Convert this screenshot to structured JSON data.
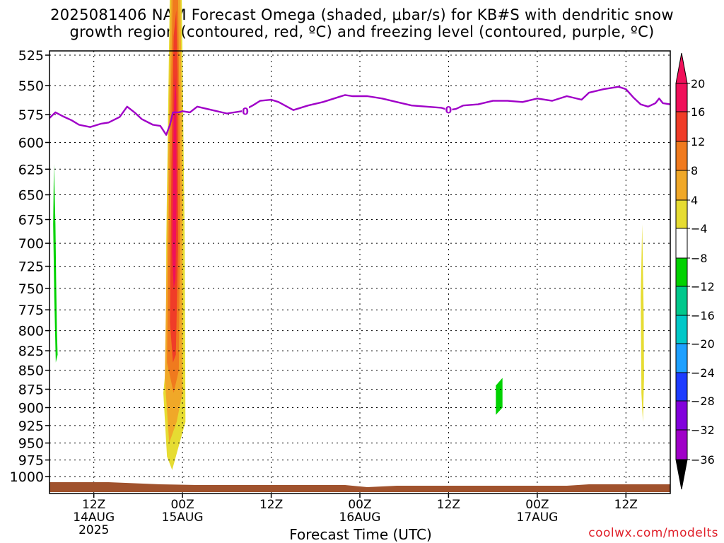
{
  "title": {
    "line1": "2025081406 NAM Forecast Omega (shaded, μbar/s) for KB#S with dendritic snow",
    "line2": "growth region (contoured, red, ºC) and freezing level (contoured, purple, ºC)"
  },
  "credit": "coolwx.com/modelts",
  "chart_data": {
    "type": "heatmap",
    "xlabel": "Forecast Time (UTC)",
    "x_axis": {
      "unit": "hours from 2025-08-14 06Z",
      "range": [
        0,
        84
      ],
      "ticks": [
        {
          "hour": 6,
          "lines": [
            "12Z",
            "14AUG",
            "2025"
          ]
        },
        {
          "hour": 18,
          "lines": [
            "00Z",
            "15AUG"
          ]
        },
        {
          "hour": 30,
          "lines": [
            "12Z"
          ]
        },
        {
          "hour": 42,
          "lines": [
            "00Z",
            "16AUG"
          ]
        },
        {
          "hour": 54,
          "lines": [
            "12Z"
          ]
        },
        {
          "hour": 66,
          "lines": [
            "00Z",
            "17AUG"
          ]
        },
        {
          "hour": 78,
          "lines": [
            "12Z"
          ]
        }
      ]
    },
    "y_axis": {
      "unit": "hPa",
      "range": [
        1000,
        525
      ],
      "scale": "log",
      "inverted": true,
      "ticks": [
        525,
        550,
        575,
        600,
        625,
        650,
        675,
        700,
        725,
        750,
        775,
        800,
        825,
        850,
        875,
        900,
        925,
        950,
        975,
        1000
      ]
    },
    "grid": true,
    "colorbar": {
      "levels": [
        20,
        16,
        12,
        8,
        4,
        -4,
        -8,
        -12,
        -16,
        -20,
        -24,
        -28,
        -32,
        -36
      ],
      "colors": [
        "#f0105a",
        "#f03c28",
        "#f07a1e",
        "#f0a828",
        "#e6dc32",
        "#ffffff",
        "#00d200",
        "#00c88c",
        "#00c8c8",
        "#1ea0ff",
        "#1e3cff",
        "#8200dc",
        "#a000c8",
        "#aaaaaa"
      ],
      "top_arrow_color": "#f0105a",
      "bottom_arrow_color": "#000000"
    },
    "freezing_level": {
      "color": "#a000c8",
      "label": "0",
      "label_hours": [
        26.5,
        54
      ],
      "hours": [
        0,
        0.8,
        2,
        3,
        4,
        5.5,
        6,
        7,
        8,
        9.5,
        10.5,
        11.5,
        12.5,
        14,
        15,
        15.8,
        16.3,
        16.7,
        17.5,
        18,
        19,
        20,
        22,
        24,
        26,
        27.5,
        28.5,
        30,
        31,
        33,
        35,
        37,
        39,
        40,
        41,
        43,
        45,
        47,
        49,
        51,
        53,
        54,
        55,
        56,
        58,
        60,
        62,
        64,
        66,
        68,
        70,
        72,
        73,
        75,
        76,
        77,
        78,
        79,
        80,
        81,
        82,
        82.5,
        83,
        84
      ],
      "pressure": [
        578,
        573,
        577,
        580,
        584,
        586,
        585,
        583,
        582,
        577,
        568,
        573,
        579,
        584,
        585,
        593,
        584,
        573,
        573,
        572,
        573,
        568,
        571,
        574,
        572,
        567,
        563,
        562,
        564,
        571,
        567,
        564,
        560,
        558,
        559,
        559,
        561,
        564,
        567,
        568,
        569,
        571,
        570,
        567,
        566,
        563,
        563,
        564,
        561,
        563,
        559,
        562,
        556,
        553,
        552,
        551,
        553,
        560,
        566,
        568,
        565,
        561,
        565,
        566
      ]
    },
    "omega_regions": [
      {
        "value": 4,
        "color": "#e6dc32",
        "polygon": [
          [
            15.4,
            1.2
          ],
          [
            15.8,
            1.6
          ],
          [
            15.8,
            3
          ],
          [
            16.5,
            6
          ],
          [
            17,
            7
          ],
          [
            17.7,
            6
          ],
          [
            18.3,
            3
          ],
          [
            18.4,
            0.8
          ],
          [
            17.6,
            0.5
          ],
          [
            16.6,
            0.1
          ],
          [
            15.9,
            0.3
          ]
        ]
      },
      {
        "value": 8,
        "color": "#f0a828",
        "polygon": [
          [
            15.6,
            1.4
          ],
          [
            16,
            3.5
          ],
          [
            16.6,
            5.8
          ],
          [
            17,
            6.3
          ],
          [
            17.6,
            5.8
          ],
          [
            18,
            3.5
          ],
          [
            18,
            1.2
          ],
          [
            17.2,
            0.8
          ],
          [
            16.2,
            0.5
          ]
        ]
      },
      {
        "value": 12,
        "color": "#f07a1e",
        "polygon": [
          [
            15.9,
            1.6
          ],
          [
            16.2,
            3.6
          ],
          [
            16.7,
            5.3
          ],
          [
            17.1,
            5.6
          ],
          [
            17.4,
            5.2
          ],
          [
            17.7,
            3.5
          ],
          [
            17.5,
            1.5
          ],
          [
            16.8,
            1.2
          ]
        ]
      },
      {
        "value": 16,
        "color": "#f03c28",
        "polygon": [
          [
            16.3,
            2.1
          ],
          [
            16.5,
            3.8
          ],
          [
            16.8,
            4.9
          ],
          [
            17.15,
            5.1
          ],
          [
            17.35,
            4.6
          ],
          [
            17.4,
            3
          ],
          [
            17.1,
            1.7
          ],
          [
            16.7,
            1.6
          ]
        ]
      },
      {
        "value": 20,
        "color": "#f0105a",
        "polygon": [
          [
            16.6,
            2.9
          ],
          [
            16.8,
            4.2
          ],
          [
            17,
            4.6
          ],
          [
            17.15,
            4.4
          ],
          [
            17.2,
            3.5
          ],
          [
            17.05,
            2.6
          ],
          [
            16.8,
            2.5
          ]
        ]
      },
      {
        "value": -4,
        "color": "#00d200",
        "polygon": [
          [
            0.6,
            3.8
          ],
          [
            0.8,
            3.2
          ],
          [
            0.9,
            2.6
          ],
          [
            1.0,
            2.0
          ],
          [
            1.1,
            1.7
          ],
          [
            0.85,
            1.6
          ],
          [
            0.65,
            2.4
          ],
          [
            0.5,
            3.2
          ]
        ]
      },
      {
        "value": -4,
        "color": "#00d200",
        "polygon": [
          [
            60.4,
            1.3
          ],
          [
            61.3,
            1.4
          ],
          [
            61.3,
            1.0
          ],
          [
            60.4,
            0.9
          ]
        ]
      },
      {
        "value": 4,
        "color": "#e6dc32",
        "polygon": [
          [
            80.2,
            3.2
          ],
          [
            80.4,
            2.2
          ],
          [
            80.45,
            1.4
          ],
          [
            80.3,
            0.8
          ],
          [
            80.1,
            1.2
          ],
          [
            80,
            2.4
          ]
        ]
      }
    ],
    "terrain_color": "#a0522d"
  }
}
